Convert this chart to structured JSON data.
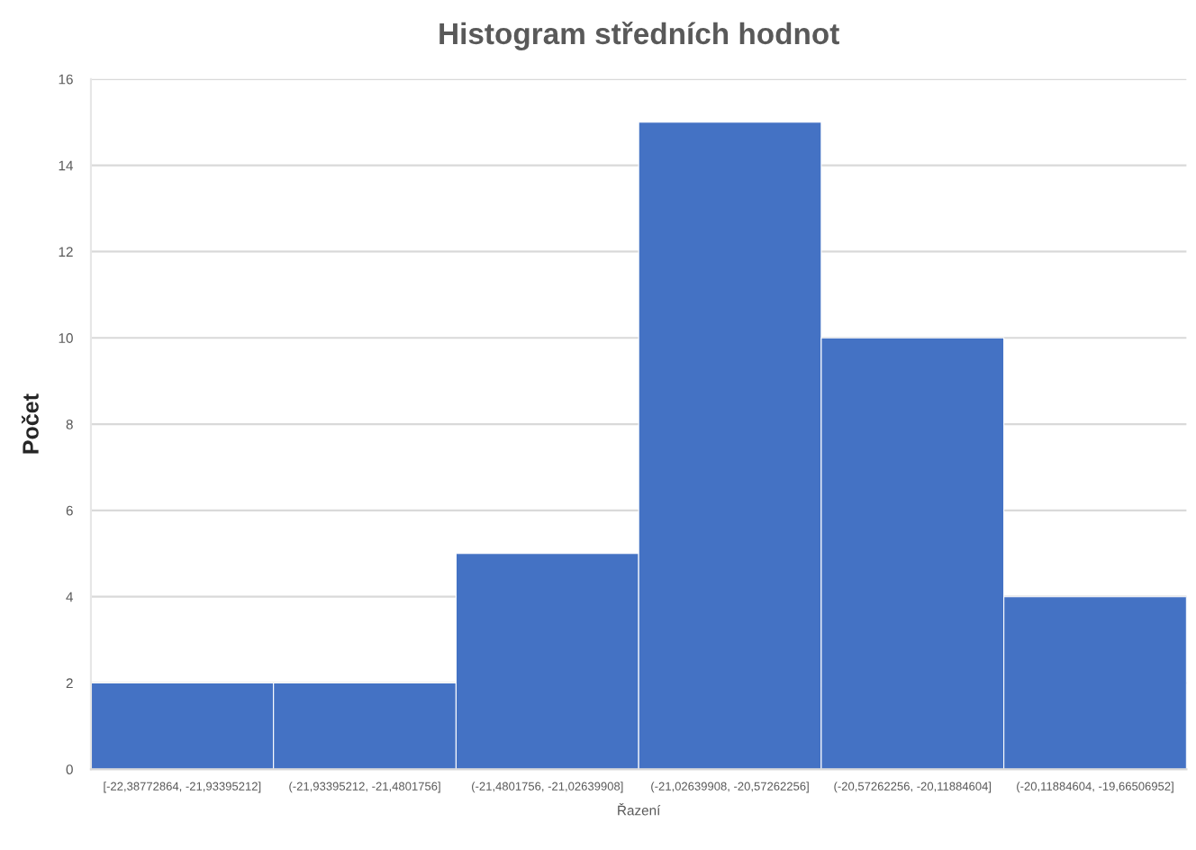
{
  "chart_data": {
    "type": "bar",
    "title": "Histogram středních hodnot",
    "xlabel": "Řazení",
    "ylabel": "Počet",
    "categories": [
      "[-22,38772864, -21,93395212]",
      "(-21,93395212, -21,4801756]",
      "(-21,4801756, -21,02639908]",
      "(-21,02639908, -20,57262256]",
      "(-20,57262256, -20,11884604]",
      "(-20,11884604, -19,66506952]"
    ],
    "values": [
      2,
      2,
      5,
      15,
      10,
      4
    ],
    "color": "#4472c4",
    "ylim": [
      0,
      16
    ],
    "yticks": [
      0,
      2,
      4,
      6,
      8,
      10,
      12,
      14,
      16
    ],
    "grid": "y"
  }
}
